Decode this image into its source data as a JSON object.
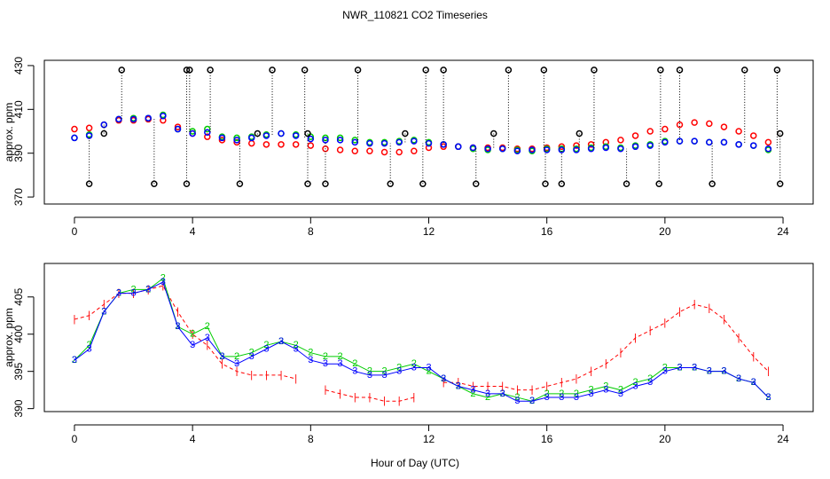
{
  "chart_data": [
    {
      "type": "scatter",
      "title": "NWR_110821  CO2 Timeseries",
      "ylabel": "approx. ppm",
      "xlim": [
        -1.02,
        25.02
      ],
      "xticks": [
        0,
        4,
        8,
        12,
        16,
        20,
        24
      ],
      "ylim": [
        366.8,
        432.4
      ],
      "yticks": [
        370,
        390,
        410,
        430
      ],
      "marker": "o",
      "x": [
        0,
        0.5,
        1,
        1.5,
        2,
        2.5,
        3,
        3.5,
        4,
        4.5,
        5,
        5.5,
        6,
        6.5,
        7,
        7.5,
        8,
        8.5,
        9,
        9.5,
        10,
        10.5,
        11,
        11.5,
        12,
        12.5,
        13,
        13.5,
        14,
        14.5,
        15,
        15.5,
        16,
        16.5,
        17,
        17.5,
        18,
        18.5,
        19,
        19.5,
        20,
        20.5,
        21,
        21.5,
        22,
        22.5,
        23,
        23.5
      ],
      "series": [
        {
          "color": "#ff0000",
          "values": [
            401,
            401.5,
            403,
            405,
            405,
            405.5,
            405,
            402,
            399,
            397.5,
            396,
            395,
            394.5,
            394,
            394,
            394,
            393.5,
            392,
            391.5,
            391,
            391,
            390.5,
            390.5,
            391,
            392.5,
            393,
            393,
            392.5,
            392.5,
            392.5,
            392,
            392,
            392.5,
            393,
            393.5,
            394,
            395,
            396,
            398,
            400,
            401,
            403,
            404,
            403.5,
            402,
            400,
            398,
            395
          ]
        },
        {
          "color": "#00cc00",
          "values": [
            397,
            398.5,
            403,
            405.5,
            406,
            406,
            407.5,
            401,
            400,
            401,
            397.5,
            397,
            397.5,
            398.5,
            399,
            398.5,
            397.5,
            397,
            397,
            396,
            395,
            395,
            395.5,
            396,
            395,
            394,
            393,
            392,
            391.5,
            392,
            391.5,
            391,
            392,
            392,
            392,
            392.5,
            393,
            392.5,
            393.5,
            394,
            395.5,
            395.5,
            395.5,
            395,
            395,
            394,
            393.5,
            391.5
          ]
        },
        {
          "color": "#0000ff",
          "values": [
            397,
            398,
            403,
            405.5,
            405.5,
            406,
            407,
            401,
            399,
            399.5,
            397,
            396,
            397,
            398,
            399,
            398,
            396.5,
            396,
            396,
            395,
            394.5,
            394.5,
            395,
            395.5,
            394.5,
            394,
            393,
            392.5,
            392,
            392,
            391,
            391.5,
            391.5,
            391.5,
            391.5,
            392,
            392.5,
            392,
            393,
            393.5,
            395,
            395.5,
            395.5,
            395,
            395,
            394,
            393.5,
            392
          ]
        },
        {
          "color": "#000000",
          "style": "spike",
          "x": [
            1.6,
            3.8,
            3.9,
            4.6,
            6.7,
            7.8,
            9.6,
            11.9,
            12.5,
            14.7,
            15.9,
            17.6,
            19.85,
            20.5,
            22.7,
            23.8,
            0.5,
            2.7,
            3.8,
            5.6,
            7.9,
            8.5,
            10.7,
            11.8,
            13.6,
            15.95,
            16.5,
            18.7,
            19.8,
            21.6,
            23.9,
            1.0,
            6.2,
            7.9,
            11.2,
            14.2,
            17.1,
            23.9
          ],
          "values": [
            428,
            428,
            428,
            428,
            428,
            428,
            428,
            428,
            428,
            428,
            428,
            428,
            428,
            428,
            428,
            428,
            376,
            376,
            376,
            376,
            376,
            376,
            376,
            376,
            376,
            376,
            376,
            376,
            376,
            376,
            376,
            399,
            399,
            399,
            399,
            399,
            399,
            399
          ]
        }
      ]
    },
    {
      "type": "line",
      "xlabel": "Hour of Day (UTC)",
      "ylabel": "approx. ppm",
      "xlim": [
        -1.02,
        25.02
      ],
      "xticks": [
        0,
        4,
        8,
        12,
        16,
        20,
        24
      ],
      "ylim": [
        389.6,
        409.5
      ],
      "yticks": [
        390,
        395,
        400,
        405
      ],
      "x": [
        0,
        0.5,
        1,
        1.5,
        2,
        2.5,
        3,
        3.5,
        4,
        4.5,
        5,
        5.5,
        6,
        6.5,
        7,
        7.5,
        8,
        8.5,
        9,
        9.5,
        10,
        10.5,
        11,
        11.5,
        12,
        12.5,
        13,
        13.5,
        14,
        14.5,
        15,
        15.5,
        16,
        16.5,
        17,
        17.5,
        18,
        18.5,
        19,
        19.5,
        20,
        20.5,
        21,
        21.5,
        22,
        22.5,
        23,
        23.5
      ],
      "series": [
        {
          "color": "#ff0000",
          "marker": "|",
          "values": [
            402,
            402.5,
            404,
            405.5,
            405.5,
            406,
            406.5,
            403,
            400,
            398.5,
            396,
            395,
            394.5,
            394.5,
            394.5,
            394,
            null,
            392.5,
            392,
            391.5,
            391.5,
            391,
            391,
            391.5,
            null,
            393.5,
            393.5,
            393,
            393,
            393,
            392.5,
            392.5,
            393,
            393.5,
            394,
            395,
            396,
            397.5,
            399.5,
            400.5,
            401.5,
            403,
            404,
            403.5,
            402,
            399.5,
            397,
            395
          ]
        },
        {
          "color": "#00cc00",
          "marker": "2",
          "values": [
            396.5,
            398.5,
            403,
            405.5,
            406,
            406,
            407.5,
            401,
            400,
            401,
            397,
            397,
            397.5,
            398.5,
            399,
            398.5,
            397.5,
            397,
            397,
            396,
            395,
            395,
            395.5,
            396,
            395,
            394,
            393,
            392,
            391.5,
            392,
            391.5,
            391,
            392,
            392,
            392,
            392.5,
            393,
            392.5,
            393.5,
            394,
            395.5,
            395.5,
            395.5,
            395,
            395,
            394,
            393.5,
            391.5
          ]
        },
        {
          "color": "#0000ff",
          "marker": "3",
          "values": [
            396.5,
            398,
            403,
            405.5,
            405.5,
            406,
            407,
            401,
            398.5,
            399.5,
            397,
            396,
            397,
            398,
            399,
            398,
            396.5,
            396,
            396,
            395,
            394.5,
            394.5,
            395,
            395.5,
            395.5,
            394,
            393,
            392.5,
            392,
            392,
            391,
            391,
            391.5,
            391.5,
            391.5,
            392,
            392.5,
            392,
            393,
            393.5,
            395,
            395.5,
            395.5,
            395,
            395,
            394,
            393.5,
            391.5
          ]
        }
      ]
    }
  ]
}
